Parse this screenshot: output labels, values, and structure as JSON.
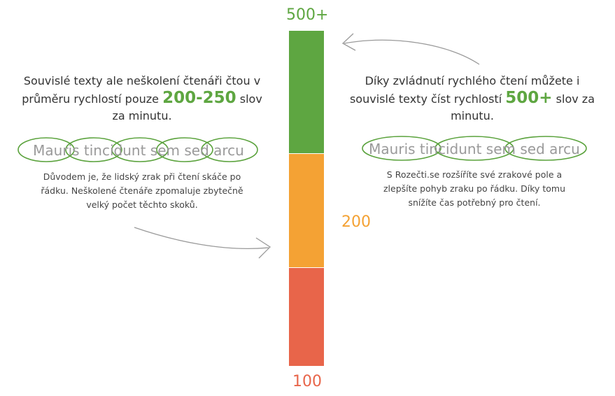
{
  "colors": {
    "green": "#5ea641",
    "orange": "#f4a234",
    "red": "#e8654a",
    "ellipse": "#5aa23c",
    "arrow": "#9a9a9a"
  },
  "scale": {
    "top_label": "500+",
    "middle_label": "200",
    "bottom_label": "100"
  },
  "left_panel": {
    "heading_part1": "Souvislé texty ale neškolení čtenáři čtou v průměru rychlostí pouze ",
    "heading_speed": "200-250",
    "heading_part2": " slov za minutu.",
    "demo_text": "Mauris tincidunt sem sed arcu",
    "description": "Důvodem je, že lidský zrak při čtení skáče po řádku. Neškolené čtenáře zpomaluje zbytečně velký počet těchto skoků."
  },
  "right_panel": {
    "heading_part1": "Díky zvládnutí rychlého čtení můžete i souvislé texty číst rychlostí ",
    "heading_speed": "500+",
    "heading_part2": " slov za minutu.",
    "demo_text": "Mauris tincidunt sem sed arcu",
    "description": "S Rozečti.se rozšíříte své zrakové pole a zlepšíte pohyb zraku po řádku. Díky tomu snížíte čas potřebný pro čtení."
  }
}
